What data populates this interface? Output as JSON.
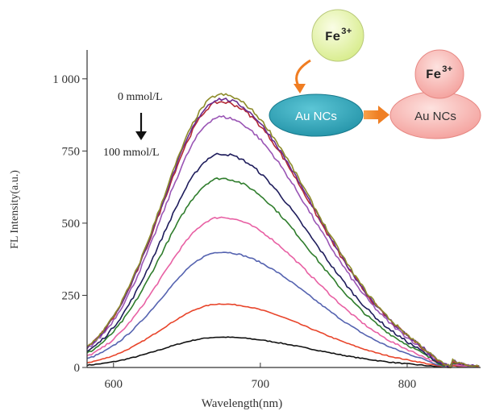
{
  "chart_data": {
    "type": "line",
    "xlabel": "Wavelength(nm)",
    "ylabel": "FL Intensity(a.u.)",
    "xlim": [
      582,
      850
    ],
    "ylim": [
      0,
      1100
    ],
    "x_ticks": [
      600,
      700,
      800
    ],
    "y_ticks": [
      0,
      250,
      500,
      750,
      1000
    ],
    "y_tick_labels": [
      "0",
      "250",
      "500",
      "750",
      "1 000"
    ],
    "grid": false,
    "legend": "none",
    "series": [
      {
        "values_at": {
          "peak_x": 673,
          "peak_y": 105
        },
        "color": "#111111"
      },
      {
        "values_at": {
          "peak_x": 673,
          "peak_y": 220
        },
        "color": "#e8452b"
      },
      {
        "values_at": {
          "peak_x": 673,
          "peak_y": 400
        },
        "color": "#5563b0"
      },
      {
        "values_at": {
          "peak_x": 673,
          "peak_y": 520
        },
        "color": "#e861a4"
      },
      {
        "values_at": {
          "peak_x": 673,
          "peak_y": 655
        },
        "color": "#2f7d2c"
      },
      {
        "values_at": {
          "peak_x": 673,
          "peak_y": 740
        },
        "color": "#1f1d5c"
      },
      {
        "values_at": {
          "peak_x": 673,
          "peak_y": 868
        },
        "color": "#9a55b5"
      },
      {
        "values_at": {
          "peak_x": 673,
          "peak_y": 920
        },
        "color": "#b32a36"
      },
      {
        "values_at": {
          "peak_x": 673,
          "peak_y": 930
        },
        "color": "#6a2c8f"
      },
      {
        "values_at": {
          "peak_x": 673,
          "peak_y": 945
        },
        "color": "#8d8b2a"
      }
    ],
    "annotations": {
      "conc_start": "0 mmol/L",
      "conc_end": "100 mmol/L",
      "fe_ion": "Fe",
      "fe_charge": "3+",
      "au_ncs": "Au NCs"
    }
  }
}
